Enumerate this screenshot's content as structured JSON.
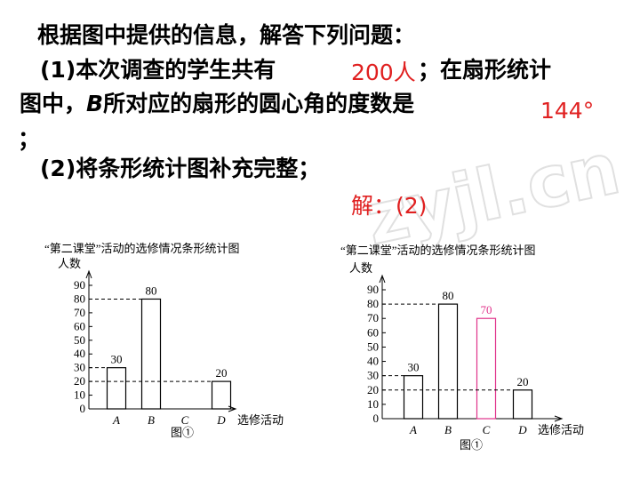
{
  "text": {
    "intro": "根据图中提供的信息，解答下列问题：",
    "q1_a": "(1)本次调查的学生共有",
    "q1_answer": "200人",
    "q1_b": "；在扇形统计",
    "q1_c": "图中，",
    "q1_d": "B",
    "q1_e": "所对应的扇形的圆心角的度数是",
    "q1_answer2": "144°",
    "q1_f": "；",
    "q2": "(2)将条形统计图补充完整；",
    "solution": "解：(2)",
    "watermark": "zyjl.cn"
  },
  "chart_data": [
    {
      "type": "bar",
      "title": "“第二课堂”活动的选修情况条形统计图",
      "y_label": "人数",
      "x_label": "选修活动",
      "caption": "图①",
      "categories": [
        "A",
        "B",
        "C",
        "D"
      ],
      "values": [
        30,
        80,
        null,
        20
      ],
      "colors": [
        "#000000",
        "#000000",
        "#000000",
        "#000000"
      ],
      "ylim": [
        0,
        90
      ],
      "yticks": [
        0,
        10,
        20,
        30,
        40,
        50,
        60,
        70,
        80,
        90
      ]
    },
    {
      "type": "bar",
      "title": "“第二课堂”活动的选修情况条形统计图",
      "y_label": "人数",
      "x_label": "选修活动",
      "caption": "图①",
      "categories": [
        "A",
        "B",
        "C",
        "D"
      ],
      "values": [
        30,
        80,
        70,
        20
      ],
      "colors": [
        "#000000",
        "#000000",
        "#e0338a",
        "#000000"
      ],
      "ylim": [
        0,
        90
      ],
      "yticks": [
        0,
        10,
        20,
        30,
        40,
        50,
        60,
        70,
        80,
        90
      ]
    }
  ]
}
